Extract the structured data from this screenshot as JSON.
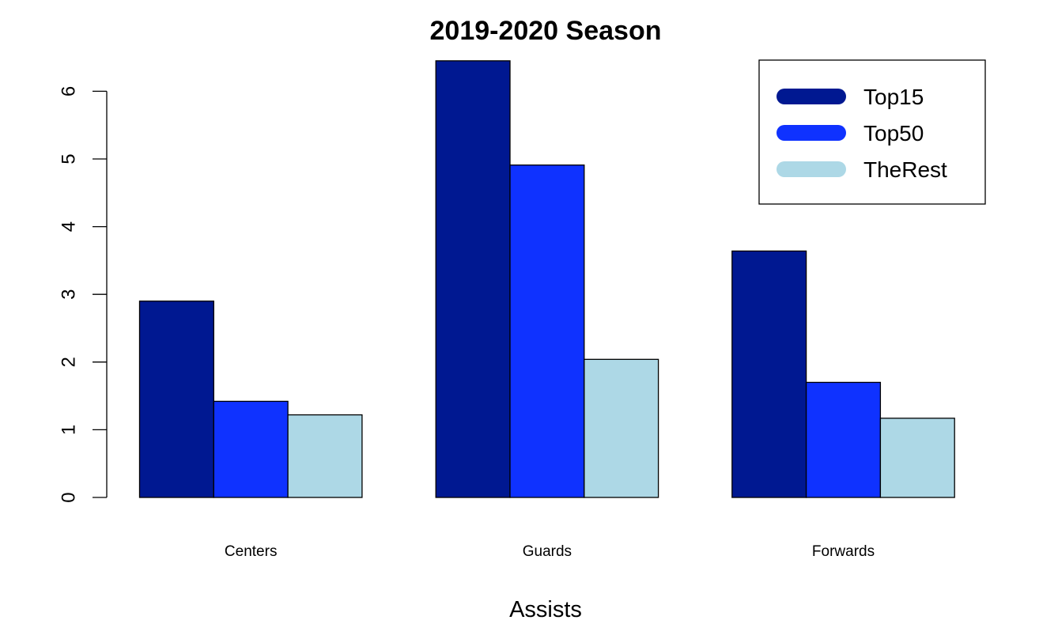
{
  "chart_data": {
    "type": "bar",
    "title": "2019-2020 Season",
    "xlabel": "Assists",
    "ylabel": "",
    "categories": [
      "Centers",
      "Guards",
      "Forwards"
    ],
    "series": [
      {
        "name": "Top15",
        "color": "#001891",
        "values": [
          2.9,
          6.45,
          3.64
        ]
      },
      {
        "name": "Top50",
        "color": "#0f32ff",
        "values": [
          1.42,
          4.91,
          1.7
        ]
      },
      {
        "name": "TheRest",
        "color": "#add8e6",
        "values": [
          1.22,
          2.04,
          1.17
        ]
      }
    ],
    "ylim": [
      0,
      6
    ],
    "yticks": [
      "0",
      "1",
      "2",
      "3",
      "4",
      "5",
      "6"
    ],
    "grid": false,
    "legend_position": "top-right"
  }
}
